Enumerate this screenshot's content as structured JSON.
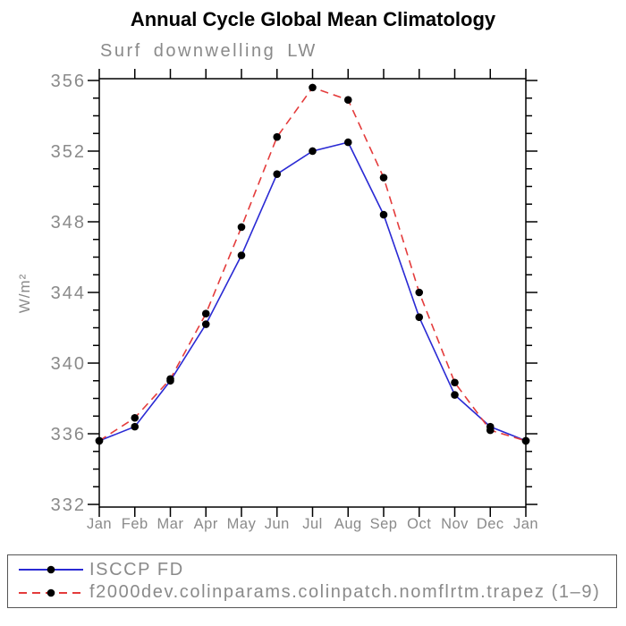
{
  "chart_data": {
    "type": "line",
    "title": "Annual Cycle Global Mean Climatology",
    "subtitle": "Surf downwelling LW",
    "ylabel": "W/m²",
    "xlabel": "",
    "categories": [
      "Jan",
      "Feb",
      "Mar",
      "Apr",
      "May",
      "Jun",
      "Jul",
      "Aug",
      "Sep",
      "Oct",
      "Nov",
      "Dec",
      "Jan"
    ],
    "series": [
      {
        "name": "ISCCP FD",
        "color": "#2a2ad4",
        "style": "solid",
        "marker": "black-dot",
        "values": [
          335.6,
          336.4,
          339.0,
          342.2,
          346.1,
          350.7,
          352.0,
          352.5,
          348.4,
          342.6,
          338.2,
          336.4,
          335.6
        ]
      },
      {
        "name": "f2000dev.colinparams.colinpatch.nomflrtm.trapez (1–9)",
        "color": "#e43c3c",
        "style": "dashed",
        "marker": "black-dot",
        "values": [
          335.6,
          336.9,
          339.1,
          342.8,
          347.7,
          352.8,
          355.6,
          354.9,
          350.5,
          344.0,
          338.9,
          336.2,
          335.6
        ]
      }
    ],
    "ylim": [
      332,
      356
    ],
    "yticks_major": [
      332,
      336,
      340,
      344,
      348,
      352,
      356
    ],
    "ytick_minor_step": 1,
    "grid": false,
    "legend_position": "bottom",
    "marker_color": "#000000",
    "axis_color": "#000000",
    "label_color": "#8a8a8a"
  }
}
